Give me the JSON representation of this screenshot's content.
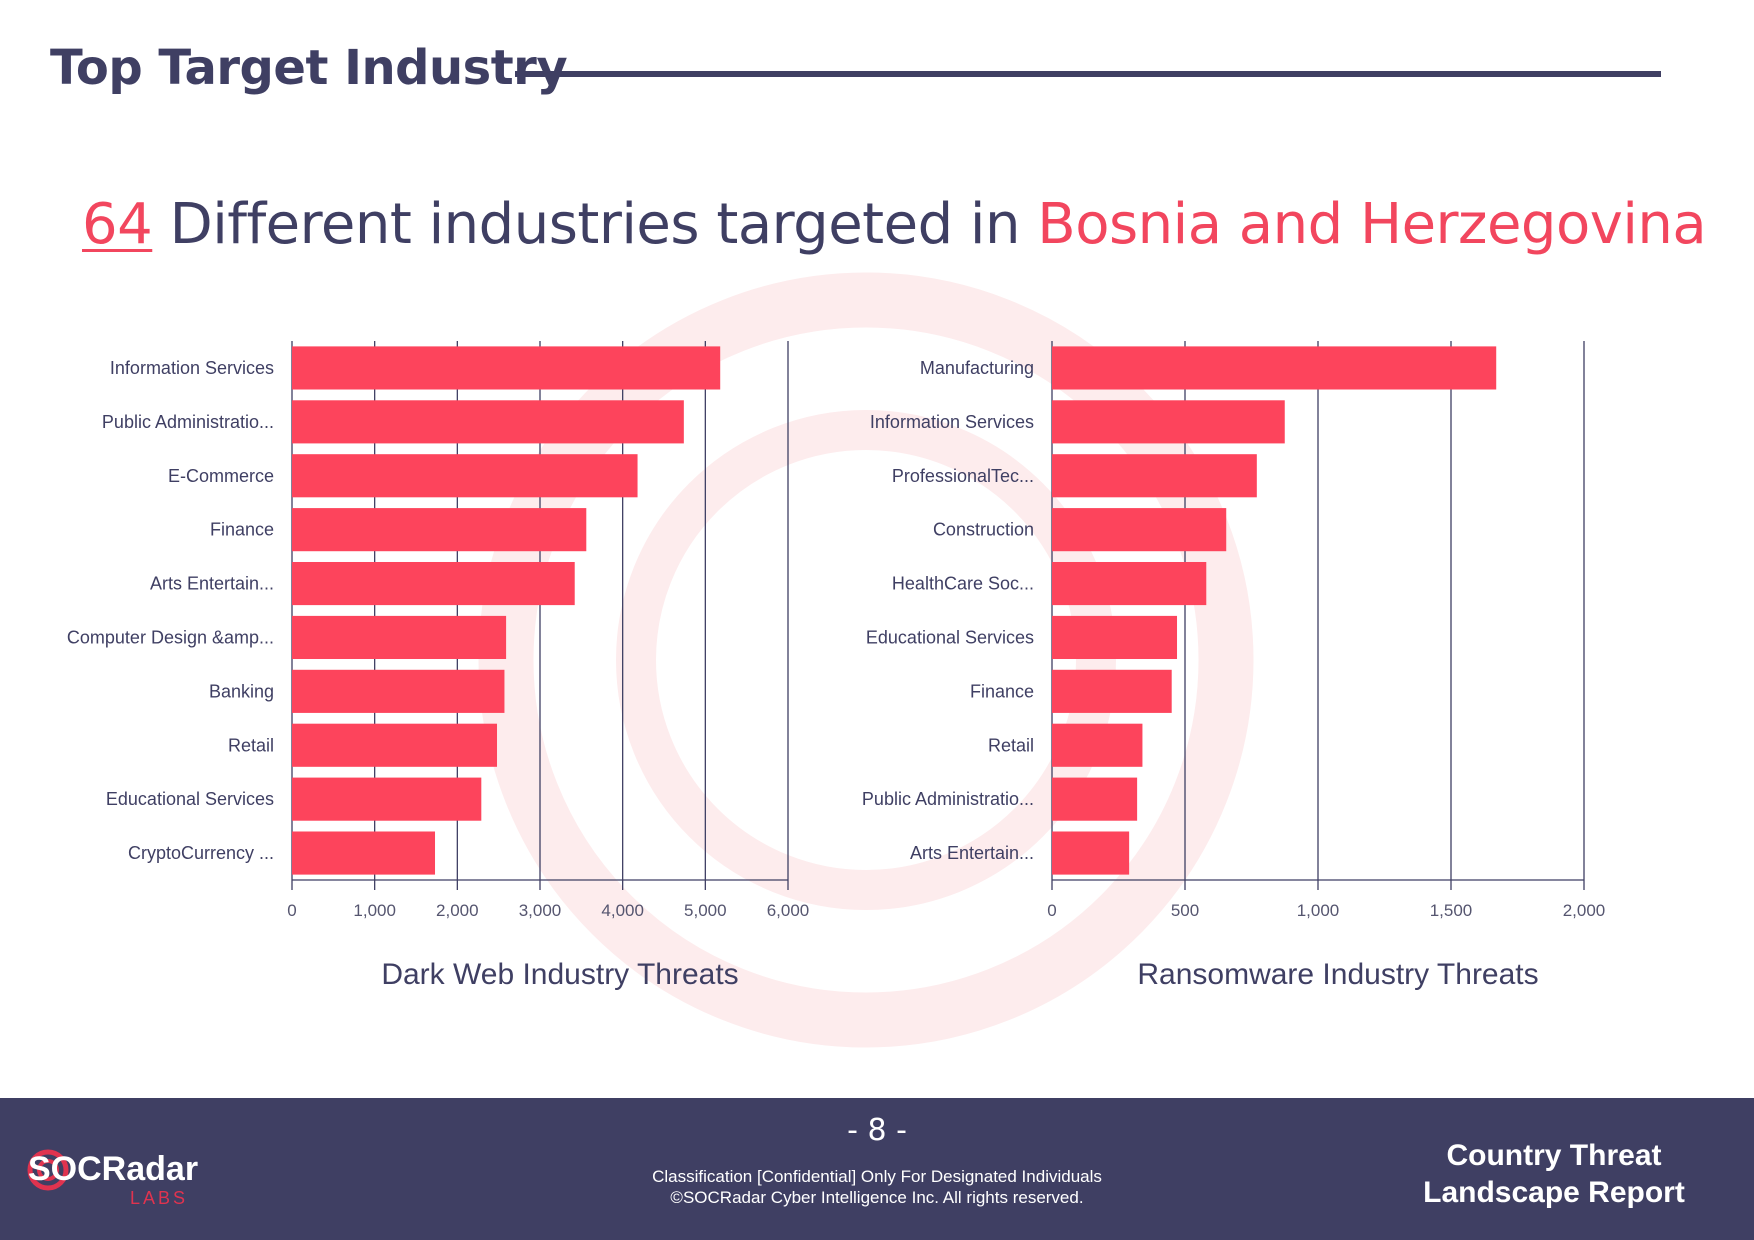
{
  "header": {
    "title": "Top Target Industry"
  },
  "headline": {
    "count": "64",
    "text": " Different industries targeted in ",
    "country": "Bosnia and Herzegovina"
  },
  "chart_data": [
    {
      "type": "bar",
      "orientation": "horizontal",
      "title": "Dark Web Industry Threats",
      "categories": [
        "Information Services",
        "Public Administratio...",
        "E-Commerce",
        "Finance",
        "Arts  Entertain...",
        "Computer Design &amp...",
        "Banking",
        "Retail",
        "Educational Services",
        "CryptoCurrency ..."
      ],
      "values": [
        5180,
        4740,
        4180,
        3560,
        3420,
        2590,
        2570,
        2480,
        2290,
        1730
      ],
      "xlim": [
        0,
        6000
      ],
      "ticks": [
        "0",
        "1,000",
        "2,000",
        "3,000",
        "4,000",
        "5,000",
        "6,000"
      ],
      "grid": true,
      "color": "#fd445c"
    },
    {
      "type": "bar",
      "orientation": "horizontal",
      "title": "Ransomware Industry Threats",
      "categories": [
        "Manufacturing",
        "Information Services",
        "ProfessionalTec...",
        "Construction",
        "HealthCare  Soc...",
        "Educational Services",
        "Finance",
        "Retail",
        "Public Administratio...",
        "Arts  Entertain..."
      ],
      "values": [
        1670,
        875,
        770,
        655,
        580,
        470,
        450,
        340,
        320,
        290
      ],
      "xlim": [
        0,
        2000
      ],
      "ticks": [
        "0",
        "500",
        "1,000",
        "1,500",
        "2,000"
      ],
      "grid": true,
      "color": "#fd445c"
    }
  ],
  "footer": {
    "page": "- 8 -",
    "classification": "Classification [Confidential] Only For Designated Individuals",
    "copyright": "©SOCRadar Cyber Intelligence Inc. All rights reserved.",
    "report_line1": "Country Threat",
    "report_line2": "Landscape Report",
    "logo_main": "SOCRadar",
    "logo_sub": "LABS"
  },
  "colors": {
    "navy": "#3f3f63",
    "accent": "#f2465e",
    "bar": "#fd445c"
  }
}
